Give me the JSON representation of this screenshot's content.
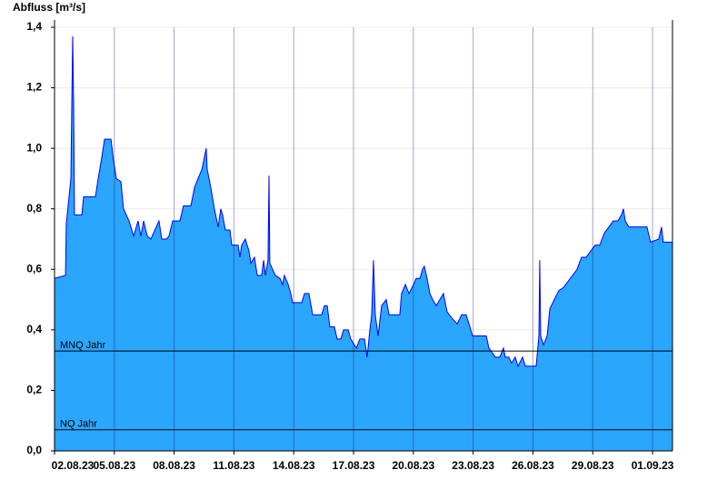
{
  "chart_data": {
    "type": "area",
    "title": "Abfluss [m³/s]",
    "x": [
      0,
      0.55,
      0.59,
      0.82,
      0.91,
      0.96,
      1.0,
      1.37,
      1.46,
      2.05,
      2.19,
      2.37,
      2.51,
      2.83,
      2.96,
      3.1,
      3.33,
      3.46,
      3.74,
      3.97,
      4.19,
      4.33,
      4.47,
      4.65,
      4.83,
      5.24,
      5.38,
      5.61,
      5.74,
      5.93,
      6.29,
      6.47,
      6.84,
      7.02,
      7.2,
      7.39,
      7.61,
      7.66,
      7.84,
      8.02,
      8.21,
      8.34,
      8.43,
      8.57,
      8.8,
      8.89,
      9.21,
      9.3,
      9.39,
      9.57,
      9.76,
      9.85,
      10.03,
      10.17,
      10.39,
      10.49,
      10.58,
      10.71,
      10.76,
      10.8,
      10.94,
      11.08,
      11.31,
      11.44,
      11.53,
      11.72,
      11.85,
      11.94,
      12.4,
      12.54,
      12.76,
      12.95,
      13.4,
      13.54,
      13.68,
      13.81,
      14.04,
      14.18,
      14.36,
      14.5,
      14.73,
      14.86,
      15.14,
      15.32,
      15.55,
      15.68,
      15.82,
      15.91,
      16.0,
      16.09,
      16.23,
      16.41,
      16.64,
      16.78,
      17.32,
      17.41,
      17.6,
      17.78,
      18.01,
      18.14,
      18.33,
      18.46,
      18.55,
      18.69,
      18.83,
      18.97,
      19.15,
      19.51,
      19.69,
      19.92,
      20.2,
      20.42,
      20.65,
      20.79,
      20.97,
      21.66,
      21.79,
      22.11,
      22.34,
      22.52,
      22.61,
      22.79,
      22.93,
      23.11,
      23.25,
      23.48,
      23.62,
      23.8,
      24.16,
      24.3,
      24.34,
      24.39,
      24.53,
      24.71,
      24.85,
      25.07,
      25.3,
      25.53,
      25.99,
      26.21,
      26.44,
      26.67,
      27.12,
      27.35,
      27.58,
      27.81,
      28.03,
      28.26,
      28.44,
      28.54,
      28.63,
      28.81,
      29.72,
      29.9,
      30.31,
      30.45,
      30.54,
      31.0
    ],
    "series": [
      {
        "color": "#2aa6fc",
        "line_color": "#0000ff",
        "values": [
          0.57,
          0.58,
          0.75,
          0.9,
          1.37,
          1.14,
          0.78,
          0.78,
          0.84,
          0.84,
          0.9,
          0.97,
          1.03,
          1.03,
          0.96,
          0.9,
          0.89,
          0.8,
          0.76,
          0.71,
          0.76,
          0.71,
          0.76,
          0.71,
          0.7,
          0.76,
          0.7,
          0.7,
          0.71,
          0.76,
          0.76,
          0.81,
          0.81,
          0.87,
          0.9,
          0.93,
          1.0,
          0.93,
          0.87,
          0.8,
          0.74,
          0.8,
          0.78,
          0.73,
          0.73,
          0.68,
          0.68,
          0.64,
          0.68,
          0.7,
          0.66,
          0.62,
          0.64,
          0.58,
          0.58,
          0.63,
          0.58,
          0.63,
          0.91,
          0.62,
          0.6,
          0.58,
          0.57,
          0.55,
          0.58,
          0.55,
          0.52,
          0.49,
          0.49,
          0.52,
          0.52,
          0.45,
          0.45,
          0.48,
          0.48,
          0.41,
          0.41,
          0.37,
          0.37,
          0.4,
          0.4,
          0.37,
          0.34,
          0.37,
          0.37,
          0.31,
          0.4,
          0.45,
          0.63,
          0.45,
          0.38,
          0.48,
          0.5,
          0.45,
          0.45,
          0.52,
          0.55,
          0.52,
          0.55,
          0.57,
          0.57,
          0.6,
          0.61,
          0.57,
          0.52,
          0.5,
          0.48,
          0.52,
          0.46,
          0.44,
          0.42,
          0.45,
          0.45,
          0.42,
          0.38,
          0.38,
          0.34,
          0.31,
          0.31,
          0.34,
          0.31,
          0.31,
          0.29,
          0.31,
          0.28,
          0.31,
          0.28,
          0.28,
          0.28,
          0.38,
          0.63,
          0.38,
          0.35,
          0.38,
          0.47,
          0.5,
          0.53,
          0.54,
          0.58,
          0.6,
          0.64,
          0.64,
          0.68,
          0.68,
          0.72,
          0.74,
          0.76,
          0.76,
          0.78,
          0.8,
          0.76,
          0.74,
          0.74,
          0.69,
          0.7,
          0.74,
          0.69,
          0.69
        ]
      }
    ],
    "xlim": [
      0,
      31
    ],
    "xticks": [
      {
        "value": 0,
        "label": "02.08.23"
      },
      {
        "value": 3,
        "label": "05.08.23"
      },
      {
        "value": 6,
        "label": "08.08.23"
      },
      {
        "value": 9,
        "label": "11.08.23"
      },
      {
        "value": 12,
        "label": "14.08.23"
      },
      {
        "value": 15,
        "label": "17.08.23"
      },
      {
        "value": 18,
        "label": "20.08.23"
      },
      {
        "value": 21,
        "label": "23.08.23"
      },
      {
        "value": 24,
        "label": "26.08.23"
      },
      {
        "value": 27,
        "label": "29.08.23"
      },
      {
        "value": 30,
        "label": "01.09.23"
      }
    ],
    "ylim": [
      0,
      1.4
    ],
    "yticks": [
      {
        "value": 0,
        "label": "0,0"
      },
      {
        "value": 0.2,
        "label": "0,2"
      },
      {
        "value": 0.4,
        "label": "0,4"
      },
      {
        "value": 0.6,
        "label": "0,6"
      },
      {
        "value": 0.8,
        "label": "0,8"
      },
      {
        "value": 1.0,
        "label": "1,0"
      },
      {
        "value": 1.2,
        "label": "1,2"
      },
      {
        "value": 1.4,
        "label": "1,4"
      }
    ],
    "grid": true,
    "reference_lines": [
      {
        "label": "MNQ Jahr",
        "value": 0.33
      },
      {
        "label": "NQ Jahr",
        "value": 0.07
      }
    ]
  }
}
